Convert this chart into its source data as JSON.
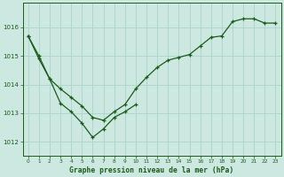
{
  "title": "Graphe pression niveau de la mer (hPa)",
  "background_color": "#cce8e0",
  "line_color": "#1a5c1a",
  "grid_color": "#aad4c8",
  "tick_color": "#1a5c1a",
  "xlim": [
    -0.5,
    23.5
  ],
  "ylim": [
    1011.5,
    1016.85
  ],
  "yticks": [
    1012,
    1013,
    1014,
    1015,
    1016
  ],
  "xticks": [
    0,
    1,
    2,
    3,
    4,
    5,
    6,
    7,
    8,
    9,
    10,
    11,
    12,
    13,
    14,
    15,
    16,
    17,
    18,
    19,
    20,
    21,
    22,
    23
  ],
  "s1_x": [
    0,
    1,
    2,
    3,
    4,
    5,
    6,
    7,
    8,
    9,
    10,
    11,
    12,
    13,
    14,
    15,
    16,
    17,
    18,
    19,
    20,
    21,
    22,
    23
  ],
  "s1_y": [
    1015.7,
    1015.0,
    1014.2,
    1013.85,
    1013.55,
    1013.25,
    1012.85,
    1012.75,
    1013.05,
    1013.3,
    1013.85,
    1014.25,
    1014.6,
    1014.85,
    1014.95,
    1015.05,
    1015.35,
    1015.65,
    1015.7,
    1016.2,
    1016.3,
    1016.3,
    1016.15,
    1016.15
  ],
  "s2_x": [
    0,
    1,
    2,
    3,
    4,
    5,
    6,
    7,
    8,
    9,
    10
  ],
  "s2_y": [
    1015.7,
    1014.9,
    1014.2,
    1013.35,
    1013.05,
    1012.65,
    1012.15,
    1012.45,
    1012.85,
    1013.05,
    1013.3
  ]
}
